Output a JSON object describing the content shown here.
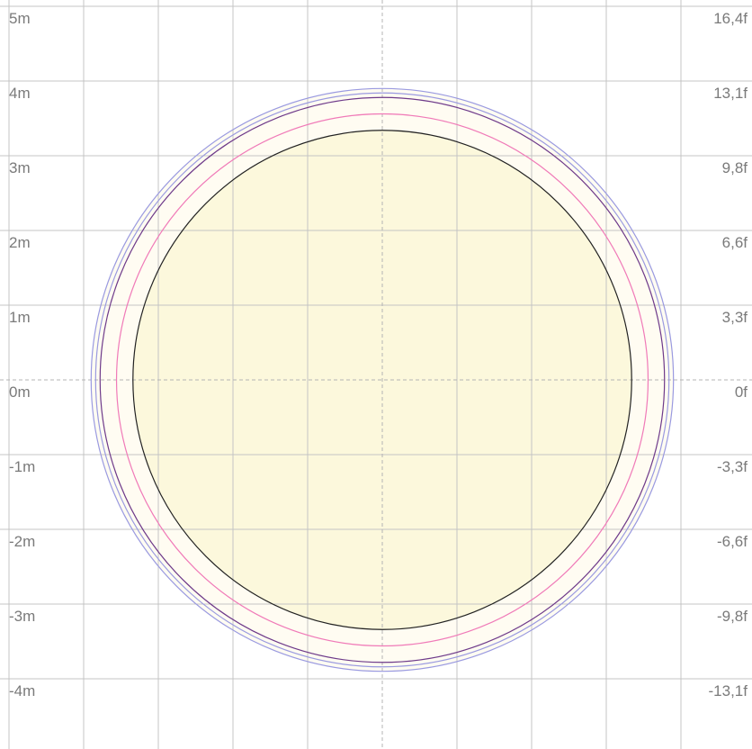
{
  "left_axis_labels": [
    "5m",
    "4m",
    "3m",
    "2m",
    "1m",
    "0m",
    "-1m",
    "-2m",
    "-3m",
    "-4m"
  ],
  "right_axis_labels": [
    "16,4f",
    "13,1f",
    "9,8f",
    "6,6f",
    "3,3f",
    "0f",
    "-3,3f",
    "-6,6f",
    "-9,8f",
    "-13,1f"
  ],
  "colors": {
    "background": "#ffffff",
    "grid": "#c4c4c4",
    "center_axis": "#b4b4b4",
    "inner_fill": "#fcf8dc",
    "ring_fill": "#fffcf2",
    "inner_circle": "#222222",
    "pink_ring": "#f07ab8",
    "purple_ring": "#6e3a8a",
    "blue_ring": "#9a9ae0"
  },
  "circles_m": [
    {
      "name": "outer-blue-ring",
      "radius": 3.9,
      "stroke": "blue_ring"
    },
    {
      "name": "inner-blue-ring",
      "radius": 3.84,
      "stroke": "blue_ring"
    },
    {
      "name": "purple-ring",
      "radius": 3.78,
      "stroke": "purple_ring"
    },
    {
      "name": "pink-ring",
      "radius": 3.56,
      "stroke": "pink_ring"
    },
    {
      "name": "inner-circle",
      "radius": 3.34,
      "stroke": "inner_circle"
    }
  ]
}
